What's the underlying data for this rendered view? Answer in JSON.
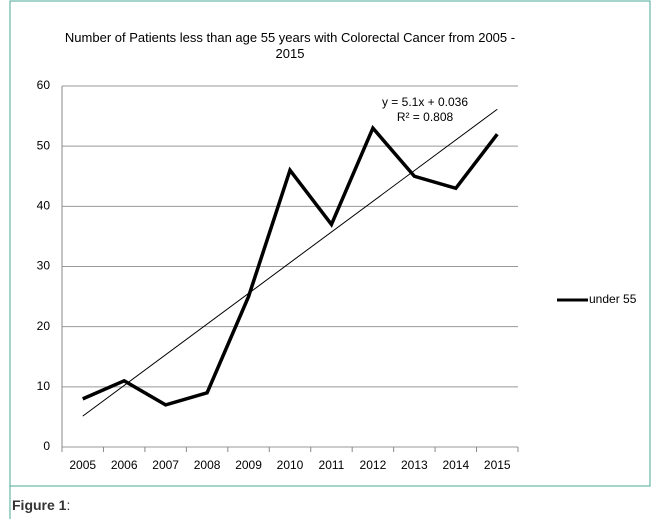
{
  "chart_data": {
    "type": "line",
    "title": "Number of Patients less than age 55 years with Colorectal  Cancer from 2005 - 2015",
    "categories": [
      "2005",
      "2006",
      "2007",
      "2008",
      "2009",
      "2010",
      "2011",
      "2012",
      "2013",
      "2014",
      "2015"
    ],
    "series": [
      {
        "name": "under 55",
        "color": "#000000",
        "values": [
          8,
          11,
          7,
          9,
          25,
          46,
          37,
          53,
          45,
          43,
          52
        ]
      }
    ],
    "trendline": {
      "slope": 5.1,
      "intercept": 0.036,
      "equation": "y = 5.1x + 0.036",
      "r_squared": "R² = 0.808",
      "color": "#000000"
    },
    "ylim": [
      0,
      60
    ],
    "yticks": [
      0,
      10,
      20,
      30,
      40,
      50,
      60
    ],
    "grid": true,
    "legend": "right"
  },
  "caption": {
    "label": "Figure 1",
    "suffix": ":"
  }
}
